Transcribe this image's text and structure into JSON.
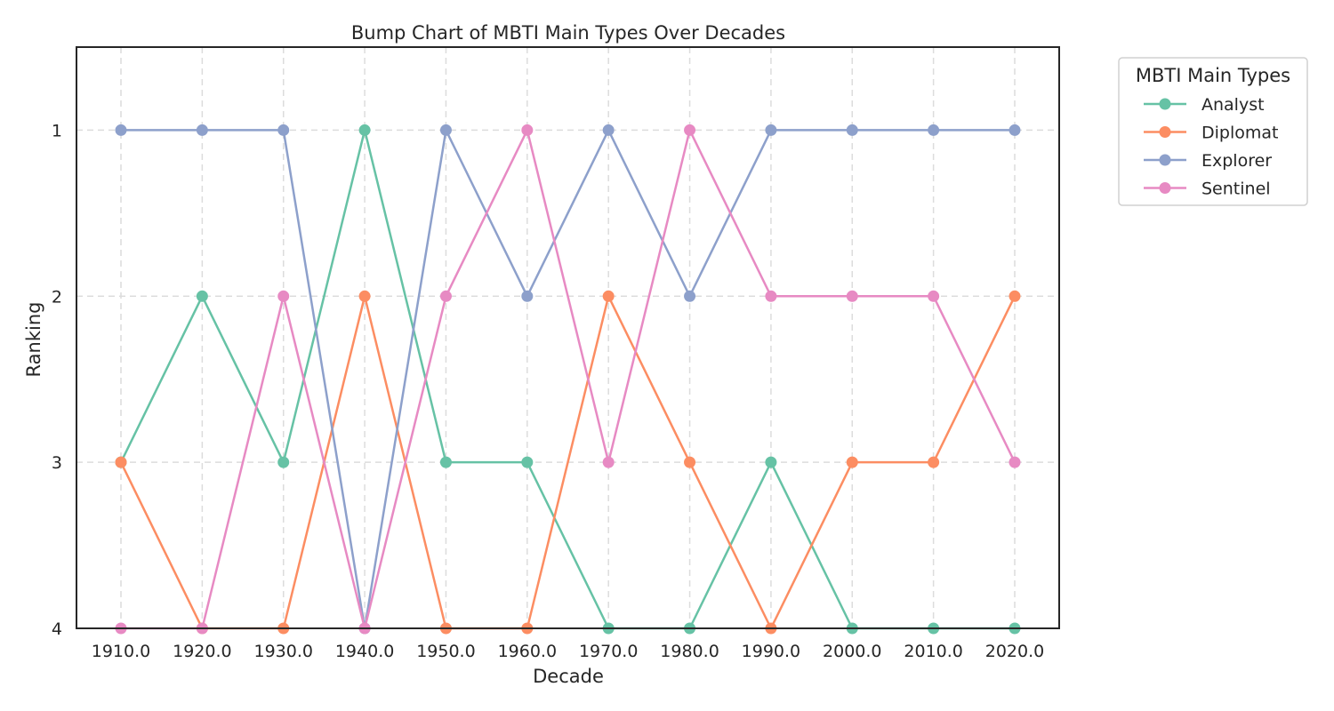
{
  "chart_data": {
    "type": "line",
    "title": "Bump Chart of MBTI Main Types Over Decades",
    "xlabel": "Decade",
    "ylabel": "Ranking",
    "x": [
      1910,
      1920,
      1930,
      1940,
      1950,
      1960,
      1970,
      1980,
      1990,
      2000,
      2010,
      2020
    ],
    "x_tick_labels": [
      "1910.0",
      "1920.0",
      "1930.0",
      "1940.0",
      "1950.0",
      "1960.0",
      "1970.0",
      "1980.0",
      "1990.0",
      "2000.0",
      "2010.0",
      "2020.0"
    ],
    "y_ticks": [
      1,
      2,
      3,
      4
    ],
    "y_tick_labels": [
      "1",
      "2",
      "3",
      "4"
    ],
    "ylim": [
      0.5,
      4
    ],
    "y_inverted": true,
    "grid": true,
    "markers": "circle",
    "legend": {
      "title": "MBTI Main Types",
      "placement": "outside-top-right"
    },
    "series": [
      {
        "name": "Analyst",
        "color": "#66c2a5",
        "values": [
          3,
          2,
          3,
          1,
          3,
          3,
          4,
          4,
          3,
          4,
          4,
          4
        ]
      },
      {
        "name": "Diplomat",
        "color": "#fc8d62",
        "values": [
          3,
          4,
          4,
          2,
          4,
          4,
          2,
          3,
          4,
          3,
          3,
          2
        ]
      },
      {
        "name": "Explorer",
        "color": "#8da0cb",
        "values": [
          1,
          1,
          1,
          4,
          1,
          2,
          1,
          2,
          1,
          1,
          1,
          1
        ]
      },
      {
        "name": "Sentinel",
        "color": "#e78ac3",
        "values": [
          4,
          4,
          2,
          4,
          2,
          1,
          3,
          1,
          2,
          2,
          2,
          3
        ]
      }
    ]
  }
}
